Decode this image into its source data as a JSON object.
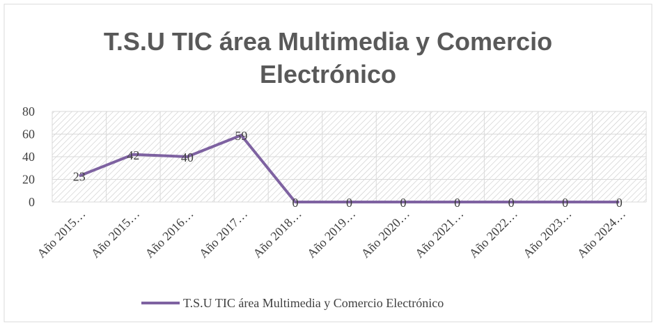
{
  "chart_data": {
    "type": "line",
    "title": "T.S.U TIC área Multimedia y Comercio Electrónico",
    "categories": [
      "Año 2015…",
      "Año 2015…",
      "Año 2016…",
      "Año 2017…",
      "Año 2018…",
      "Año 2019…",
      "Año 2020…",
      "Año 2021…",
      "Año 2022…",
      "Año 2023…",
      "Año 2024…"
    ],
    "series": [
      {
        "name": "T.S.U TIC área Multimedia y Comercio Electrónico",
        "color": "#7e62a1",
        "values": [
          23,
          42,
          40,
          59,
          0,
          0,
          0,
          0,
          0,
          0,
          0
        ]
      }
    ],
    "ylim": [
      0,
      80
    ],
    "yticks": [
      0,
      20,
      40,
      60,
      80
    ],
    "grid": true,
    "legend": "bottom"
  }
}
